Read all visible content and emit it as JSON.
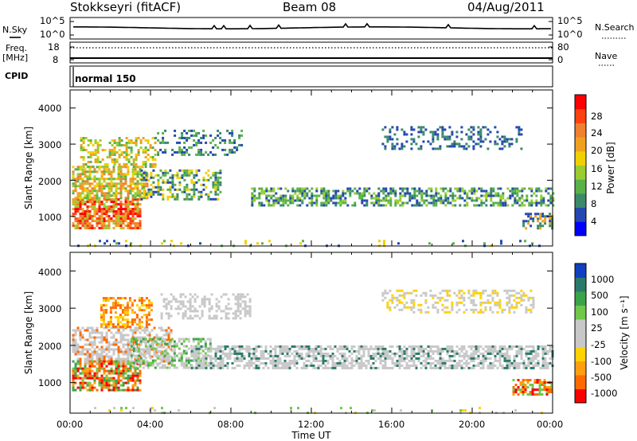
{
  "header": {
    "radar": "Stokkseyri (fitACF)",
    "beam": "Beam 08",
    "date": "04/Aug/2011"
  },
  "noise": {
    "left_label": "N.Sky",
    "right_label": "N.Search",
    "left_ticks": [
      "10^5",
      "10^0"
    ],
    "right_ticks": [
      "10^5",
      "10^0"
    ]
  },
  "freq": {
    "left_label_1": "Freq.",
    "left_label_2": "[MHz]",
    "left_ticks": [
      "18",
      "8"
    ],
    "right_label": "Nave",
    "right_ticks": [
      "80",
      "0"
    ]
  },
  "cpid": {
    "label": "CPID",
    "mode": "normal 150"
  },
  "colors": {
    "power": [
      "#0000ff",
      "#2448b0",
      "#3a8a6a",
      "#59b14a",
      "#9acd32",
      "#f0d000",
      "#f0a020",
      "#f08030",
      "#ff4010",
      "#ff0000"
    ],
    "velocity": [
      "#ff0000",
      "#ff6a00",
      "#ff9f10",
      "#ffd200",
      "#c8c8c8",
      "#c8c8c8",
      "#70c84a",
      "#3aa44a",
      "#2a7a6a",
      "#1040c0"
    ],
    "ground_scatter": "#c8c8c8"
  },
  "icons": {
    "noise_line": "solid-line-icon",
    "search_line": "dotted-line-icon",
    "nave_line": "dotted-line-icon"
  },
  "chart_data": [
    {
      "type": "heatmap",
      "title": "",
      "ylabel": "Slant Range [km]",
      "xlabel": "",
      "ylim": [
        180,
        4500
      ],
      "yticks": [
        "1000",
        "2000",
        "3000",
        "4000"
      ],
      "xticks": [
        "00:00",
        "04:00",
        "08:00",
        "12:00",
        "16:00",
        "20:00",
        "00:00"
      ],
      "colorbar": {
        "label": "Power [dB]",
        "ticks": [
          "4",
          "8",
          "12",
          "16",
          "20",
          "24",
          "28"
        ],
        "range": [
          0,
          30
        ]
      }
    },
    {
      "type": "heatmap",
      "title": "",
      "ylabel": "Slant Range [km]",
      "xlabel": "Time UT",
      "ylim": [
        180,
        4500
      ],
      "yticks": [
        "1000",
        "2000",
        "3000",
        "4000"
      ],
      "xticks": [
        "00:00",
        "04:00",
        "08:00",
        "12:00",
        "16:00",
        "20:00",
        "00:00"
      ],
      "colorbar": {
        "label": "Velocity [m s⁻¹]",
        "ticks": [
          "1000",
          "500",
          "100",
          "25",
          "-25",
          "-100",
          "-500",
          "-1000"
        ]
      }
    }
  ]
}
